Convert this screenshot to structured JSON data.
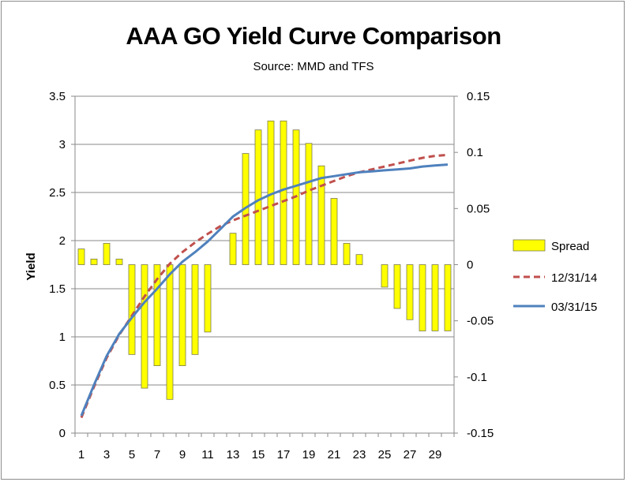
{
  "chart_data": {
    "type": "bar+line",
    "title": "AAA GO Yield Curve Comparison",
    "subtitle": "Source: MMD and TFS",
    "ylabel": "Yield",
    "ylabel_right": "",
    "xlabel": "",
    "x": [
      1,
      2,
      3,
      4,
      5,
      6,
      7,
      8,
      9,
      10,
      11,
      12,
      13,
      14,
      15,
      16,
      17,
      18,
      19,
      20,
      21,
      22,
      23,
      24,
      25,
      26,
      27,
      28,
      29,
      30
    ],
    "x_tick_labels": [
      "1",
      "3",
      "5",
      "7",
      "9",
      "11",
      "13",
      "15",
      "17",
      "19",
      "21",
      "23",
      "25",
      "27",
      "29"
    ],
    "ylim": [
      0,
      3.5
    ],
    "y_ticks": [
      "0",
      "0.5",
      "1",
      "1.5",
      "2",
      "2.5",
      "3",
      "3.5"
    ],
    "ylim_right": [
      -0.15,
      0.15
    ],
    "y_right_ticks": [
      "-0.15",
      "-0.1",
      "-0.05",
      "0",
      "0.05",
      "0.1",
      "0.15"
    ],
    "grid": true,
    "legend_position": "right",
    "series": [
      {
        "name": "Spread",
        "kind": "bar",
        "axis": "right",
        "color": "#ffff00",
        "values": [
          0.014,
          0.005,
          0.019,
          0.005,
          -0.08,
          -0.11,
          -0.09,
          -0.12,
          -0.09,
          -0.08,
          -0.06,
          0,
          0.028,
          0.099,
          0.12,
          0.128,
          0.128,
          0.12,
          0.108,
          0.088,
          0.059,
          0.019,
          0.009,
          0,
          -0.02,
          -0.039,
          -0.049,
          -0.059,
          -0.059,
          -0.059
        ]
      },
      {
        "name": "12/31/14",
        "kind": "line",
        "axis": "left",
        "style": "dashed",
        "color": "#c0504d",
        "values": [
          0.16,
          0.48,
          0.78,
          1.02,
          1.22,
          1.42,
          1.6,
          1.76,
          1.88,
          1.98,
          2.07,
          2.15,
          2.21,
          2.26,
          2.31,
          2.36,
          2.41,
          2.46,
          2.52,
          2.57,
          2.62,
          2.67,
          2.71,
          2.74,
          2.77,
          2.8,
          2.83,
          2.86,
          2.88,
          2.89
        ]
      },
      {
        "name": "03/31/15",
        "kind": "line",
        "axis": "left",
        "style": "solid",
        "color": "#4f81bd",
        "values": [
          0.18,
          0.5,
          0.8,
          1.03,
          1.2,
          1.36,
          1.5,
          1.65,
          1.78,
          1.88,
          1.99,
          2.12,
          2.25,
          2.34,
          2.42,
          2.48,
          2.53,
          2.57,
          2.61,
          2.65,
          2.67,
          2.69,
          2.71,
          2.72,
          2.73,
          2.74,
          2.75,
          2.77,
          2.78,
          2.79
        ]
      }
    ]
  }
}
